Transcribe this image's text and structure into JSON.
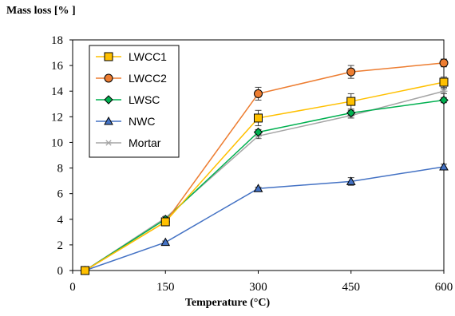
{
  "chart_data": {
    "type": "line",
    "ylabel": "Mass loss [% ]",
    "xlabel": "Temperature (°C)",
    "x": [
      20,
      150,
      300,
      450,
      600
    ],
    "xticks": [
      0,
      150,
      300,
      450,
      600
    ],
    "yticks": [
      0,
      2,
      4,
      6,
      8,
      10,
      12,
      14,
      16,
      18
    ],
    "xlim": [
      0,
      600
    ],
    "ylim": [
      0,
      18
    ],
    "grid": false,
    "legend_position": "top-left",
    "series": [
      {
        "name": "LWCC1",
        "values": [
          0,
          3.8,
          11.9,
          13.2,
          14.7
        ],
        "errors": [
          0,
          0.1,
          0.6,
          0.6,
          0.4
        ],
        "color": "#ffc000",
        "marker": "square"
      },
      {
        "name": "LWCC2",
        "values": [
          0,
          3.8,
          13.8,
          15.5,
          16.2
        ],
        "errors": [
          0,
          0.1,
          0.5,
          0.5,
          0.3
        ],
        "color": "#ed7d31",
        "marker": "circle"
      },
      {
        "name": "LWSC",
        "values": [
          0,
          4.0,
          10.8,
          12.3,
          13.3
        ],
        "errors": [
          0,
          0.1,
          0.2,
          0.2,
          0.2
        ],
        "color": "#00b050",
        "marker": "diamond"
      },
      {
        "name": "NWC",
        "values": [
          0,
          2.2,
          6.4,
          6.95,
          8.1
        ],
        "errors": [
          0,
          0.1,
          0.1,
          0.3,
          0.2
        ],
        "color": "#4472c4",
        "marker": "triangle"
      },
      {
        "name": "Mortar",
        "values": [
          0,
          4.1,
          10.5,
          12.1,
          14.0
        ],
        "errors": [
          0,
          0.1,
          0.2,
          0.2,
          0.2
        ],
        "color": "#a5a5a5",
        "marker": "star"
      }
    ]
  }
}
